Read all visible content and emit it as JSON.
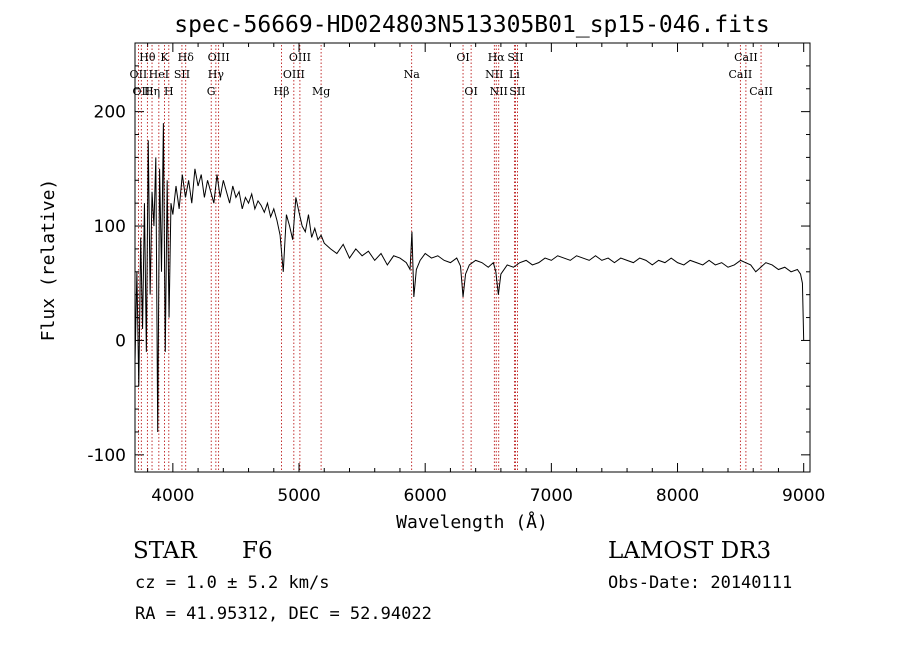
{
  "chart_data": {
    "type": "line",
    "title": "spec-56669-HD024803N513305B01_sp15-046.fits",
    "xlabel": "Wavelength (Å)",
    "ylabel": "Flux (relative)",
    "xlim": [
      3700,
      9050
    ],
    "ylim": [
      -115,
      260
    ],
    "xticks": [
      4000,
      5000,
      6000,
      7000,
      8000,
      9000
    ],
    "yticks": [
      -100,
      0,
      100,
      200
    ],
    "x_minor_step": 200,
    "y_minor_step": 20,
    "series": [
      {
        "name": "flux",
        "x": [
          3700,
          3715,
          3730,
          3745,
          3760,
          3775,
          3790,
          3805,
          3820,
          3835,
          3850,
          3865,
          3880,
          3895,
          3910,
          3925,
          3940,
          3955,
          3970,
          3985,
          4000,
          4025,
          4050,
          4075,
          4100,
          4125,
          4150,
          4175,
          4200,
          4225,
          4250,
          4275,
          4300,
          4325,
          4350,
          4375,
          4400,
          4425,
          4450,
          4475,
          4500,
          4525,
          4550,
          4575,
          4600,
          4625,
          4650,
          4675,
          4700,
          4725,
          4750,
          4775,
          4800,
          4825,
          4850,
          4875,
          4900,
          4925,
          4950,
          4975,
          5000,
          5025,
          5050,
          5075,
          5100,
          5125,
          5150,
          5175,
          5200,
          5250,
          5300,
          5350,
          5400,
          5450,
          5500,
          5550,
          5600,
          5650,
          5700,
          5750,
          5800,
          5850,
          5880,
          5895,
          5910,
          5930,
          5960,
          6000,
          6050,
          6100,
          6150,
          6200,
          6250,
          6280,
          6300,
          6320,
          6350,
          6400,
          6450,
          6500,
          6540,
          6560,
          6580,
          6600,
          6650,
          6700,
          6750,
          6800,
          6850,
          6900,
          6950,
          7000,
          7050,
          7100,
          7150,
          7200,
          7250,
          7300,
          7350,
          7400,
          7450,
          7500,
          7550,
          7600,
          7650,
          7700,
          7750,
          7800,
          7850,
          7900,
          7950,
          8000,
          8050,
          8100,
          8150,
          8200,
          8250,
          8300,
          8350,
          8400,
          8450,
          8500,
          8540,
          8580,
          8620,
          8660,
          8700,
          8750,
          8800,
          8850,
          8900,
          8950,
          8975,
          8990,
          9000
        ],
        "y": [
          -20,
          60,
          -40,
          90,
          10,
          120,
          -10,
          175,
          40,
          130,
          100,
          160,
          -80,
          150,
          60,
          190,
          -10,
          140,
          20,
          120,
          110,
          135,
          115,
          145,
          125,
          140,
          120,
          150,
          135,
          145,
          125,
          140,
          130,
          120,
          145,
          125,
          140,
          130,
          120,
          135,
          125,
          130,
          115,
          125,
          120,
          128,
          115,
          122,
          118,
          112,
          120,
          108,
          115,
          105,
          92,
          60,
          110,
          100,
          88,
          125,
          112,
          100,
          95,
          110,
          90,
          98,
          88,
          92,
          85,
          80,
          76,
          84,
          72,
          80,
          74,
          78,
          70,
          76,
          66,
          74,
          72,
          68,
          62,
          95,
          38,
          62,
          70,
          76,
          72,
          74,
          70,
          68,
          72,
          65,
          38,
          58,
          66,
          70,
          68,
          64,
          68,
          60,
          40,
          58,
          66,
          64,
          68,
          70,
          66,
          68,
          72,
          70,
          74,
          72,
          70,
          74,
          72,
          70,
          74,
          70,
          72,
          68,
          72,
          70,
          68,
          72,
          70,
          66,
          70,
          68,
          72,
          68,
          66,
          70,
          68,
          66,
          70,
          66,
          68,
          64,
          66,
          70,
          68,
          66,
          60,
          64,
          68,
          66,
          62,
          64,
          60,
          62,
          58,
          50,
          0
        ]
      }
    ],
    "line_markers": [
      {
        "wavelength": 3727,
        "label": "OII",
        "row": 2
      },
      {
        "wavelength": 3750,
        "label": "OII",
        "row": 3
      },
      {
        "wavelength": 3798,
        "label": "Hθ",
        "row": 1
      },
      {
        "wavelength": 3835,
        "label": "Hη",
        "row": 3
      },
      {
        "wavelength": 3889,
        "label": "HeI",
        "row": 2
      },
      {
        "wavelength": 3934,
        "label": "K",
        "row": 1
      },
      {
        "wavelength": 3968,
        "label": "H",
        "row": 3
      },
      {
        "wavelength": 4072,
        "label": "SII",
        "row": 2
      },
      {
        "wavelength": 4102,
        "label": "Hδ",
        "row": 1
      },
      {
        "wavelength": 4304,
        "label": "G",
        "row": 3
      },
      {
        "wavelength": 4341,
        "label": "Hγ",
        "row": 2
      },
      {
        "wavelength": 4363,
        "label": "OIII",
        "row": 1
      },
      {
        "wavelength": 4861,
        "label": "Hβ",
        "row": 3
      },
      {
        "wavelength": 4959,
        "label": "OIII",
        "row": 2
      },
      {
        "wavelength": 5007,
        "label": "OIII",
        "row": 1
      },
      {
        "wavelength": 5175,
        "label": "Mg",
        "row": 3
      },
      {
        "wavelength": 5893,
        "label": "Na",
        "row": 2
      },
      {
        "wavelength": 6300,
        "label": "OI",
        "row": 1
      },
      {
        "wavelength": 6364,
        "label": "OI",
        "row": 3
      },
      {
        "wavelength": 6548,
        "label": "NII",
        "row": 2
      },
      {
        "wavelength": 6563,
        "label": "Hα",
        "row": 1
      },
      {
        "wavelength": 6583,
        "label": "NII",
        "row": 3
      },
      {
        "wavelength": 6707,
        "label": "Li",
        "row": 2
      },
      {
        "wavelength": 6716,
        "label": "SII",
        "row": 1
      },
      {
        "wavelength": 6731,
        "label": "SII",
        "row": 3
      },
      {
        "wavelength": 8498,
        "label": "CaII",
        "row": 2
      },
      {
        "wavelength": 8542,
        "label": "CaII",
        "row": 1
      },
      {
        "wavelength": 8662,
        "label": "CaII",
        "row": 3
      }
    ]
  },
  "footer": {
    "object_type": "STAR",
    "spectral_class": "F6",
    "cz_line": "cz = 1.0 ± 5.2 km/s",
    "radec_line": "RA =  41.95312, DEC =  52.94022",
    "survey": "LAMOST DR3",
    "obs_date": "Obs-Date: 20140111"
  },
  "colors": {
    "axis": "#000000",
    "flux_line": "#000000",
    "marker_line": "#b30000",
    "text": "#000000"
  }
}
